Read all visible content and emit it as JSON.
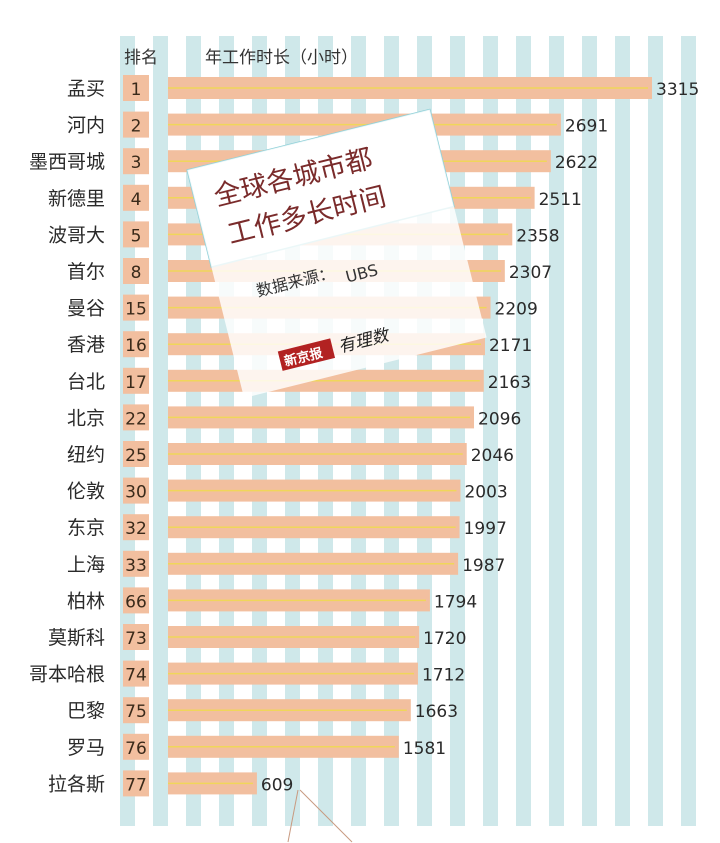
{
  "chart_data": {
    "type": "bar",
    "orientation": "horizontal",
    "title_line1": "全球各城市都",
    "title_line2": "工作多长时间",
    "rank_header": "排名",
    "value_header": "年工作时长（小时）",
    "source_label": "数据来源：",
    "source": "UBS",
    "brand": "新京报",
    "brand_tag": "有理数",
    "xlim": [
      0,
      3500
    ],
    "categories": [
      "孟买",
      "河内",
      "墨西哥城",
      "新德里",
      "波哥大",
      "首尔",
      "曼谷",
      "香港",
      "台北",
      "北京",
      "纽约",
      "伦敦",
      "东京",
      "上海",
      "柏林",
      "莫斯科",
      "哥本哈根",
      "巴黎",
      "罗马",
      "拉各斯"
    ],
    "ranks": [
      "1",
      "2",
      "3",
      "4",
      "5",
      "8",
      "15",
      "16",
      "17",
      "22",
      "25",
      "30",
      "32",
      "33",
      "66",
      "73",
      "74",
      "75",
      "76",
      "77"
    ],
    "values": [
      3315,
      2691,
      2622,
      2511,
      2358,
      2307,
      2209,
      2171,
      2163,
      2096,
      2046,
      2003,
      1997,
      1987,
      1794,
      1720,
      1712,
      1663,
      1581,
      609
    ],
    "colors": {
      "bar": "#f2bf9f",
      "rank_box": "#f2bf9f",
      "stripe": "#cfe8ea",
      "title": "#7a2b2b",
      "line": "#f0d65a"
    }
  }
}
